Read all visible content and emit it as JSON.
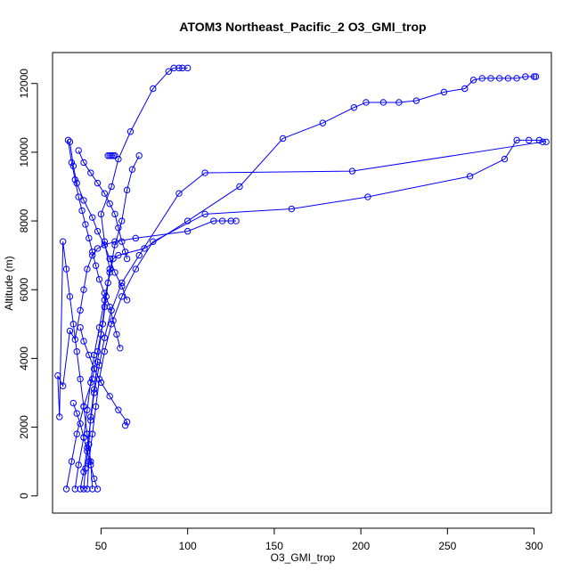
{
  "chart_data": {
    "type": "line",
    "title": "ATOM3 Northeast_Pacific_2 O3_GMI_trop",
    "xlabel": "O3_GMI_trop",
    "ylabel": "Altitude (m)",
    "xlim": [
      22,
      310
    ],
    "ylim": [
      -500,
      12900
    ],
    "x_ticks": [
      50,
      100,
      150,
      200,
      250,
      300
    ],
    "y_ticks": [
      0,
      2000,
      4000,
      6000,
      8000,
      10000,
      12000
    ],
    "marker": "open-circle",
    "line_style": "solid",
    "grid": false,
    "legend": "none",
    "color": "#0000ff",
    "series": [
      {
        "x": [
          30,
          33,
          36,
          40,
          45,
          48,
          51,
          53,
          55,
          52,
          50,
          56,
          60,
          67,
          80,
          89,
          92,
          95,
          97,
          100
        ],
        "y": [
          200,
          1000,
          1800,
          2600,
          3400,
          4200,
          5000,
          5800,
          6600,
          7400,
          8200,
          9000,
          9800,
          10600,
          11850,
          12350,
          12450,
          12450,
          12450,
          12450
        ]
      },
      {
        "x": [
          35,
          37,
          40,
          42,
          44,
          46,
          49,
          52,
          55,
          58,
          62,
          65,
          68,
          72
        ],
        "y": [
          200,
          900,
          1700,
          2500,
          3300,
          4100,
          4900,
          5700,
          6500,
          7300,
          8000,
          8900,
          9500,
          9900
        ]
      },
      {
        "x": [
          40,
          41,
          43,
          44,
          46,
          48,
          50,
          52,
          54,
          57,
          60,
          75,
          100,
          130,
          155,
          178,
          196,
          203,
          213,
          222,
          232,
          248,
          260,
          265,
          270,
          275,
          280,
          285,
          290,
          295,
          300,
          301
        ],
        "y": [
          200,
          800,
          1500,
          2300,
          3100,
          3900,
          4700,
          5500,
          6200,
          6900,
          7000,
          7200,
          8000,
          9000,
          10400,
          10850,
          11300,
          11450,
          11450,
          11450,
          11500,
          11750,
          11850,
          12100,
          12150,
          12150,
          12150,
          12150,
          12150,
          12200,
          12200,
          12200
        ]
      },
      {
        "x": [
          38,
          40,
          42,
          44,
          46,
          49,
          52,
          56,
          62,
          72,
          95,
          110,
          195,
          305
        ],
        "y": [
          200,
          700,
          1400,
          2200,
          3000,
          3800,
          4600,
          5400,
          6200,
          7000,
          8800,
          9400,
          9450,
          10300
        ]
      },
      {
        "x": [
          42,
          43,
          45,
          47,
          49,
          52,
          56,
          62,
          70,
          80,
          110,
          160,
          204,
          263,
          283,
          290,
          297,
          303,
          307
        ],
        "y": [
          200,
          1000,
          1800,
          2600,
          3400,
          4200,
          5000,
          5800,
          6600,
          7400,
          8200,
          8350,
          8700,
          9300,
          9800,
          10350,
          10350,
          10350,
          10300
        ]
      },
      {
        "x": [
          45,
          44,
          42,
          40,
          38,
          36,
          34,
          32,
          30,
          28,
          26,
          25,
          28,
          32,
          35,
          38,
          40,
          42,
          45,
          48,
          52,
          58,
          70,
          100,
          115,
          120,
          125,
          128
        ],
        "y": [
          200,
          1000,
          1800,
          2600,
          3400,
          4200,
          5000,
          5800,
          6600,
          7400,
          2300,
          3500,
          3200,
          4800,
          4550,
          5400,
          6000,
          6600,
          7000,
          7200,
          7300,
          7400,
          7500,
          7700,
          8000,
          8000,
          8000,
          8000
        ]
      },
      {
        "x": [
          31,
          33,
          35,
          37,
          39,
          41,
          43,
          45,
          47,
          49,
          52,
          55,
          57,
          59,
          61
        ],
        "y": [
          10350,
          9700,
          9200,
          8700,
          8300,
          7900,
          7500,
          7100,
          6700,
          6300,
          5900,
          5500,
          5100,
          4700,
          4300
        ]
      },
      {
        "x": [
          32,
          34,
          36,
          40,
          45,
          48,
          52,
          55,
          58,
          62,
          65
        ],
        "y": [
          10300,
          9600,
          9100,
          8600,
          8100,
          7700,
          7300,
          6900,
          6500,
          6100,
          5700
        ]
      },
      {
        "x": [
          37,
          40,
          44,
          48,
          52,
          55,
          58,
          60,
          62,
          64,
          65
        ],
        "y": [
          10050,
          9700,
          9400,
          9100,
          8800,
          8500,
          8200,
          7800,
          7400,
          7100,
          6900
        ]
      },
      {
        "x": [
          54,
          55,
          56,
          57,
          58
        ],
        "y": [
          9900,
          9900,
          9900,
          9900,
          9900
        ]
      },
      {
        "x": [
          48,
          46,
          44,
          42,
          40,
          38,
          36,
          34
        ],
        "y": [
          200,
          500,
          900,
          1300,
          1700,
          2100,
          2400,
          2700
        ]
      },
      {
        "x": [
          64,
          65,
          60,
          55,
          50,
          46,
          43,
          40,
          38
        ],
        "y": [
          2050,
          2150,
          2500,
          2900,
          3300,
          3700,
          4100,
          4500,
          4900
        ]
      }
    ]
  }
}
